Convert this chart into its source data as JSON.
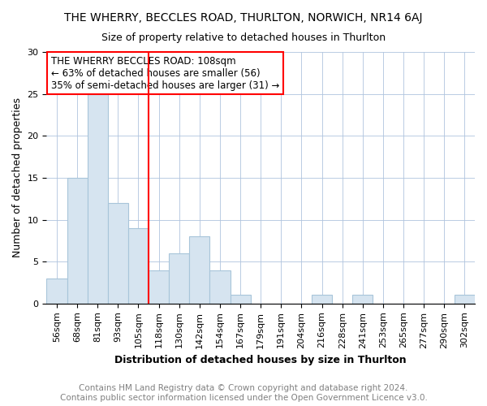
{
  "title": "THE WHERRY, BECCLES ROAD, THURLTON, NORWICH, NR14 6AJ",
  "subtitle": "Size of property relative to detached houses in Thurlton",
  "xlabel": "Distribution of detached houses by size in Thurlton",
  "ylabel": "Number of detached properties",
  "categories": [
    "56sqm",
    "68sqm",
    "81sqm",
    "93sqm",
    "105sqm",
    "118sqm",
    "130sqm",
    "142sqm",
    "154sqm",
    "167sqm",
    "179sqm",
    "191sqm",
    "204sqm",
    "216sqm",
    "228sqm",
    "241sqm",
    "253sqm",
    "265sqm",
    "277sqm",
    "290sqm",
    "302sqm"
  ],
  "values": [
    3,
    15,
    25,
    12,
    9,
    4,
    6,
    8,
    4,
    1,
    0,
    0,
    0,
    1,
    0,
    1,
    0,
    0,
    0,
    0,
    1
  ],
  "bar_color": "#d6e4f0",
  "bar_edgecolor": "#a8c5da",
  "annotation_line1": "THE WHERRY BECCLES ROAD: 108sqm",
  "annotation_line2": "← 63% of detached houses are smaller (56)",
  "annotation_line3": "35% of semi-detached houses are larger (31) →",
  "annotation_box_color": "white",
  "annotation_box_edgecolor": "red",
  "redline_color": "red",
  "redline_idx": 5,
  "ylim": [
    0,
    30
  ],
  "yticks": [
    0,
    5,
    10,
    15,
    20,
    25,
    30
  ],
  "footer1": "Contains HM Land Registry data © Crown copyright and database right 2024.",
  "footer2": "Contains public sector information licensed under the Open Government Licence v3.0.",
  "title_fontsize": 10,
  "subtitle_fontsize": 9,
  "xlabel_fontsize": 9,
  "ylabel_fontsize": 9,
  "tick_fontsize": 8,
  "footer_fontsize": 7.5,
  "annotation_fontsize": 8.5
}
